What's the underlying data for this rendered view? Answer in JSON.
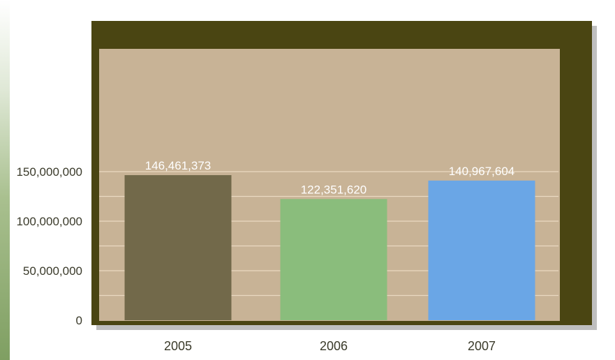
{
  "chart_data": {
    "type": "bar",
    "categories": [
      "2005",
      "2006",
      "2007"
    ],
    "values": [
      146461373,
      122351620,
      140967604
    ],
    "value_labels": [
      "146,461,373",
      "122,351,620",
      "140,967,604"
    ],
    "bar_colors": [
      "#72694a",
      "#8abd7c",
      "#6aa6e6"
    ],
    "y_ticks": [
      0,
      50000000,
      100000000,
      150000000
    ],
    "y_tick_labels": [
      "0",
      "50,000,000",
      "100,000,000",
      "150,000,000"
    ],
    "ylim": [
      0,
      150000000
    ],
    "grid": true,
    "title": "",
    "xlabel": "",
    "ylabel": ""
  },
  "colors": {
    "frame": "#4a4512",
    "plot_bg": "#c8b396",
    "gridline": "#ead9c1"
  }
}
